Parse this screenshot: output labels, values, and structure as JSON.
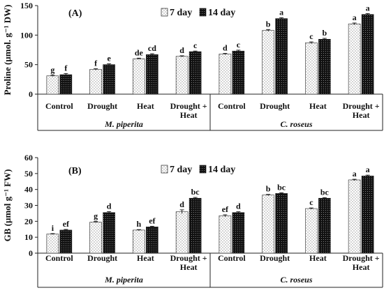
{
  "chart_data": [
    {
      "type": "bar",
      "panel_label": "(A)",
      "ylabel": "Proline (µmol. g⁻¹ DW)",
      "ylim": [
        0,
        150
      ],
      "yticks": [
        0,
        50,
        100,
        150
      ],
      "categories": [
        "Control",
        "Drought",
        "Heat",
        "Drought + Heat",
        "Control",
        "Drought",
        "Heat",
        "Drought + Heat"
      ],
      "groups": [
        {
          "name": "M. piperita",
          "span": [
            0,
            3
          ]
        },
        {
          "name": "C. roseus",
          "span": [
            4,
            7
          ]
        }
      ],
      "series": [
        {
          "name": "7 day",
          "values": [
            31,
            42,
            60,
            64,
            68,
            108,
            87,
            119
          ],
          "errors": [
            1,
            1,
            1,
            1,
            1,
            1.5,
            1.5,
            1.5
          ],
          "labels": [
            "g",
            "f",
            "de",
            "d",
            "d",
            "b",
            "c",
            "a"
          ]
        },
        {
          "name": "14 day",
          "values": [
            33,
            50,
            67,
            72,
            73,
            128,
            93,
            135
          ],
          "errors": [
            2,
            1.5,
            1.5,
            1,
            1.5,
            1.5,
            1.5,
            1.5
          ],
          "labels": [
            "f",
            "e",
            "cd",
            "c",
            "c",
            "a",
            "b",
            "a"
          ]
        }
      ],
      "legend": "top-center",
      "grid": false
    },
    {
      "type": "bar",
      "panel_label": "(B)",
      "ylabel": "GB (µmol g⁻¹ FW)",
      "ylim": [
        0,
        60
      ],
      "yticks": [
        0,
        10,
        20,
        30,
        40,
        50,
        60
      ],
      "categories": [
        "Control",
        "Drought",
        "Heat",
        "Drought + Heat",
        "Control",
        "Drought",
        "Heat",
        "Drought + Heat"
      ],
      "groups": [
        {
          "name": "M. piperita",
          "span": [
            0,
            3
          ]
        },
        {
          "name": "C. roseus",
          "span": [
            4,
            7
          ]
        }
      ],
      "series": [
        {
          "name": "7 day",
          "values": [
            12,
            19.5,
            14.5,
            26,
            23.5,
            36.5,
            28,
            46
          ],
          "errors": [
            0.3,
            0.4,
            0.3,
            1.2,
            0.6,
            0.4,
            0.4,
            0.4
          ],
          "labels": [
            "i",
            "g",
            "h",
            "d",
            "ef",
            "b",
            "c",
            "a"
          ]
        },
        {
          "name": "14 day",
          "values": [
            14.5,
            25.5,
            16.5,
            34.5,
            25.5,
            37.5,
            34.5,
            48.5
          ],
          "errors": [
            0.4,
            0.6,
            0.4,
            0.5,
            0.5,
            0.4,
            0.4,
            0.5
          ],
          "labels": [
            "ef",
            "d",
            "ef",
            "bc",
            "d",
            "bc",
            "bc",
            "a"
          ]
        }
      ],
      "legend": "top-center",
      "grid": false
    }
  ]
}
